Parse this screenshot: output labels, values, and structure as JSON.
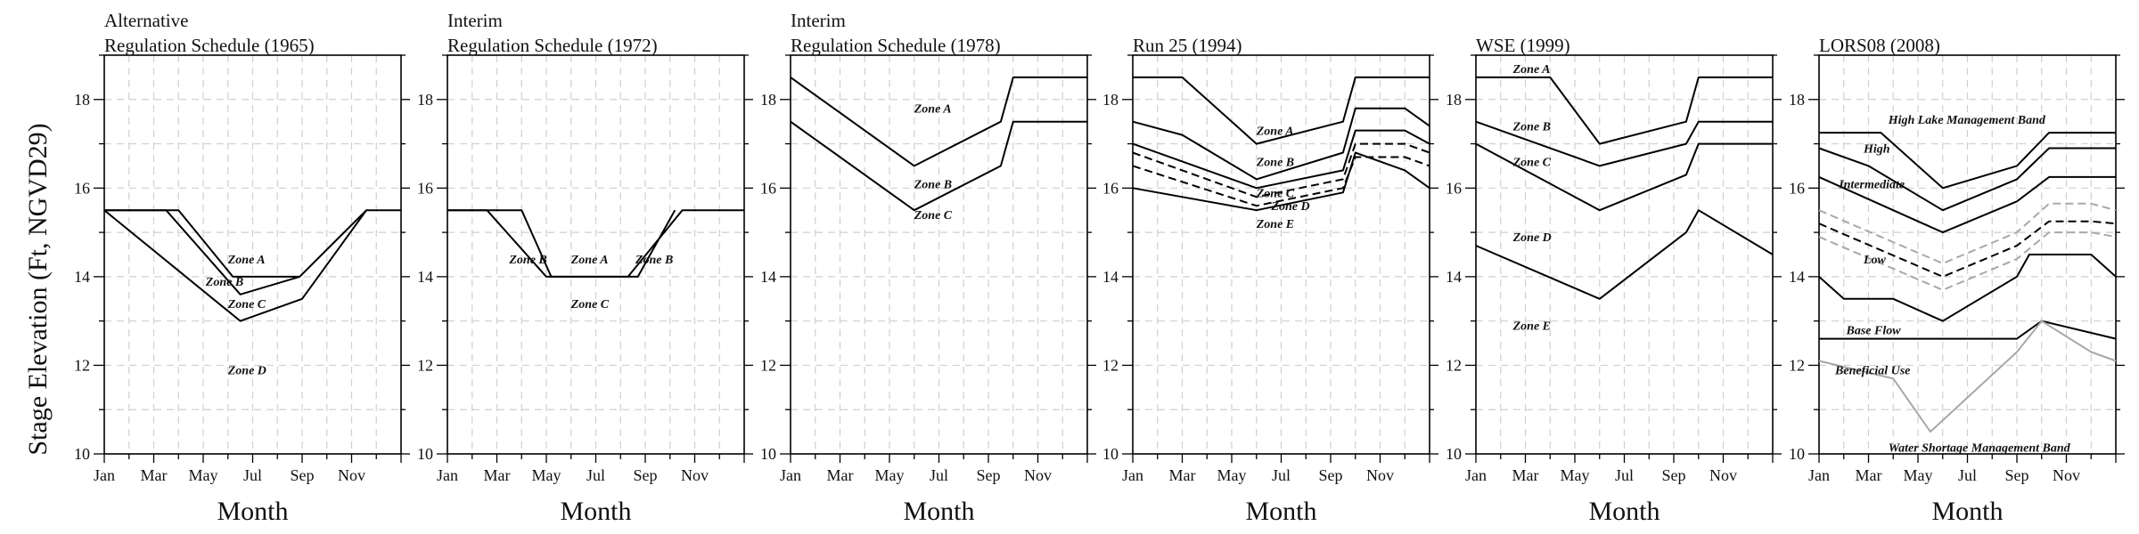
{
  "figure": {
    "ylabel": "Stage Elevation (Ft, NGVD29)",
    "colors": {
      "line": "#000000",
      "grey_line": "#a8a8a8",
      "grid": "#cfcfcf"
    }
  },
  "chart_data": [
    {
      "type": "line",
      "title_lines": [
        "Alternative",
        "Regulation Schedule (1965)"
      ],
      "xlabel": "Month",
      "x_ticks": [
        "Jan",
        "Mar",
        "May",
        "Jul",
        "Sep",
        "Nov"
      ],
      "xlim": [
        0,
        12
      ],
      "ylim": [
        10,
        19
      ],
      "y_ticks": [
        10,
        12,
        14,
        16,
        18
      ],
      "series": [
        {
          "style": "solid",
          "x": [
            0,
            3,
            5.2,
            7.9,
            10.6,
            12
          ],
          "y": [
            15.5,
            15.5,
            14,
            14,
            15.5,
            15.5
          ]
        },
        {
          "style": "solid",
          "x": [
            0,
            2.5,
            5.5,
            7.9
          ],
          "y": [
            15.5,
            15.5,
            13.6,
            14
          ]
        },
        {
          "style": "solid",
          "x": [
            0,
            5.5,
            8,
            10.6
          ],
          "y": [
            15.5,
            13,
            13.5,
            15.5
          ]
        }
      ],
      "labels": [
        {
          "text": "Zone A",
          "x": 5,
          "y": 14.4
        },
        {
          "text": "Zone B",
          "x": 4.1,
          "y": 13.9
        },
        {
          "text": "Zone C",
          "x": 5,
          "y": 13.4
        },
        {
          "text": "Zone D",
          "x": 5,
          "y": 11.9
        }
      ]
    },
    {
      "type": "line",
      "title_lines": [
        "Interim",
        "Regulation Schedule (1972)"
      ],
      "xlabel": "Month",
      "x_ticks": [
        "Jan",
        "Mar",
        "May",
        "Jul",
        "Sep",
        "Nov"
      ],
      "xlim": [
        0,
        12
      ],
      "ylim": [
        10,
        19
      ],
      "y_ticks": [
        10,
        12,
        14,
        16,
        18
      ],
      "series": [
        {
          "style": "solid",
          "x": [
            0,
            3,
            4.2,
            7.3,
            9.5,
            12
          ],
          "y": [
            15.5,
            15.5,
            14,
            14,
            15.5,
            15.5
          ]
        },
        {
          "style": "solid",
          "x": [
            0,
            1.6,
            4,
            7.7,
            9.2
          ],
          "y": [
            15.5,
            15.5,
            14,
            14,
            15.5
          ]
        }
      ],
      "labels": [
        {
          "text": "Zone B",
          "x": 2.5,
          "y": 14.4
        },
        {
          "text": "Zone A",
          "x": 5,
          "y": 14.4
        },
        {
          "text": "Zone B",
          "x": 7.6,
          "y": 14.4
        },
        {
          "text": "Zone C",
          "x": 5,
          "y": 13.4
        }
      ]
    },
    {
      "type": "line",
      "title_lines": [
        "Interim",
        "Regulation Schedule (1978)"
      ],
      "xlabel": "Month",
      "x_ticks": [
        "Jan",
        "Mar",
        "May",
        "Jul",
        "Sep",
        "Nov"
      ],
      "xlim": [
        0,
        12
      ],
      "ylim": [
        10,
        19
      ],
      "y_ticks": [
        10,
        12,
        14,
        16,
        18
      ],
      "series": [
        {
          "style": "solid",
          "x": [
            0,
            5,
            8.5,
            9,
            12
          ],
          "y": [
            18.5,
            16.5,
            17.5,
            18.5,
            18.5
          ]
        },
        {
          "style": "solid",
          "x": [
            0,
            5,
            8.5,
            9,
            12
          ],
          "y": [
            17.5,
            15.5,
            16.5,
            17.5,
            17.5
          ]
        }
      ],
      "labels": [
        {
          "text": "Zone A",
          "x": 5,
          "y": 17.8
        },
        {
          "text": "Zone B",
          "x": 5,
          "y": 16.1
        },
        {
          "text": "Zone C",
          "x": 5,
          "y": 15.4
        }
      ]
    },
    {
      "type": "line",
      "title_lines": [
        "Run 25 (1994)"
      ],
      "xlabel": "Month",
      "x_ticks": [
        "Jan",
        "Mar",
        "May",
        "Jul",
        "Sep",
        "Nov"
      ],
      "xlim": [
        0,
        12
      ],
      "ylim": [
        10,
        19
      ],
      "y_ticks": [
        10,
        12,
        14,
        16,
        18
      ],
      "series": [
        {
          "style": "solid",
          "x": [
            0,
            2,
            5,
            8.5,
            9,
            12
          ],
          "y": [
            18.5,
            18.5,
            17,
            17.5,
            18.5,
            18.5
          ]
        },
        {
          "style": "solid",
          "x": [
            0,
            2,
            5,
            8.5,
            9,
            11,
            12
          ],
          "y": [
            17.5,
            17.2,
            16.2,
            16.8,
            17.8,
            17.8,
            17.4
          ]
        },
        {
          "style": "solid",
          "x": [
            0,
            5,
            8.5,
            9,
            11,
            12
          ],
          "y": [
            17,
            16,
            16.4,
            17.3,
            17.3,
            17
          ]
        },
        {
          "style": "dashed",
          "x": [
            0,
            5,
            8.5,
            9,
            11,
            12
          ],
          "y": [
            16.8,
            15.8,
            16.2,
            17,
            17,
            16.8
          ]
        },
        {
          "style": "dashed",
          "x": [
            0,
            5,
            8.5,
            9,
            11,
            12
          ],
          "y": [
            16.5,
            15.6,
            16,
            16.7,
            16.7,
            16.5
          ]
        },
        {
          "style": "solid",
          "x": [
            0,
            5,
            8.5,
            9,
            11,
            12
          ],
          "y": [
            16,
            15.5,
            15.9,
            16.8,
            16.4,
            16
          ]
        }
      ],
      "labels": [
        {
          "text": "Zone A",
          "x": 5,
          "y": 17.3
        },
        {
          "text": "Zone B",
          "x": 5,
          "y": 16.6
        },
        {
          "text": "Zone C",
          "x": 5,
          "y": 15.9
        },
        {
          "text": "Zone D",
          "x": 5.6,
          "y": 15.6
        },
        {
          "text": "Zone E",
          "x": 5,
          "y": 15.2
        }
      ]
    },
    {
      "type": "line",
      "title_lines": [
        "WSE (1999)"
      ],
      "xlabel": "Month",
      "x_ticks": [
        "Jan",
        "Mar",
        "May",
        "Jul",
        "Sep",
        "Nov"
      ],
      "xlim": [
        0,
        12
      ],
      "ylim": [
        10,
        19
      ],
      "y_ticks": [
        10,
        12,
        14,
        16,
        18
      ],
      "series": [
        {
          "style": "solid",
          "x": [
            0,
            3,
            5,
            8.5,
            9,
            12
          ],
          "y": [
            18.5,
            18.5,
            17,
            17.5,
            18.5,
            18.5
          ]
        },
        {
          "style": "solid",
          "x": [
            0,
            5,
            8.5,
            9,
            12
          ],
          "y": [
            17.5,
            16.5,
            17,
            17.5,
            17.5
          ]
        },
        {
          "style": "solid",
          "x": [
            0,
            5,
            8.5,
            9,
            12
          ],
          "y": [
            17,
            15.5,
            16.3,
            17,
            17
          ]
        },
        {
          "style": "solid",
          "x": [
            0,
            5,
            8.5,
            9,
            12
          ],
          "y": [
            14.7,
            13.5,
            15,
            15.5,
            14.5
          ]
        }
      ],
      "labels": [
        {
          "text": "Zone A",
          "x": 1.5,
          "y": 18.7
        },
        {
          "text": "Zone B",
          "x": 1.5,
          "y": 17.4
        },
        {
          "text": "Zone C",
          "x": 1.5,
          "y": 16.6
        },
        {
          "text": "Zone D",
          "x": 1.5,
          "y": 14.9
        },
        {
          "text": "Zone E",
          "x": 1.5,
          "y": 12.9
        }
      ]
    },
    {
      "type": "line",
      "title_lines": [
        "LORS08 (2008)"
      ],
      "xlabel": "Month",
      "x_ticks": [
        "Jan",
        "Mar",
        "May",
        "Jul",
        "Sep",
        "Nov"
      ],
      "xlim": [
        0,
        12
      ],
      "ylim": [
        10,
        19
      ],
      "y_ticks": [
        10,
        12,
        14,
        16,
        18
      ],
      "series": [
        {
          "style": "solid",
          "x": [
            0,
            2.5,
            5,
            8,
            9.3,
            11,
            12
          ],
          "y": [
            17.25,
            17.25,
            16,
            16.5,
            17.25,
            17.25,
            17.25
          ]
        },
        {
          "style": "solid",
          "x": [
            0,
            2,
            5,
            8,
            9.3,
            11,
            12
          ],
          "y": [
            16.9,
            16.5,
            15.5,
            16.2,
            16.9,
            16.9,
            16.9
          ]
        },
        {
          "style": "solid",
          "x": [
            0,
            5,
            8,
            9.3,
            11,
            12
          ],
          "y": [
            16.25,
            15,
            15.7,
            16.25,
            16.25,
            16.25
          ]
        },
        {
          "style": "dashed-grey",
          "x": [
            0,
            5,
            8,
            9.3,
            11,
            12
          ],
          "y": [
            15.5,
            14.3,
            15,
            15.65,
            15.65,
            15.5
          ]
        },
        {
          "style": "dashed",
          "x": [
            0,
            5,
            8,
            9.3,
            11,
            12
          ],
          "y": [
            15.2,
            14,
            14.7,
            15.25,
            15.25,
            15.2
          ]
        },
        {
          "style": "dashed-grey",
          "x": [
            0,
            5,
            8,
            9.3,
            11,
            12
          ],
          "y": [
            14.9,
            13.7,
            14.4,
            15,
            15,
            14.9
          ]
        },
        {
          "style": "solid",
          "x": [
            0,
            1,
            3,
            5,
            8,
            8.5,
            11,
            12
          ],
          "y": [
            14,
            13.5,
            13.5,
            13,
            14,
            14.5,
            14.5,
            14
          ]
        },
        {
          "style": "solid",
          "x": [
            0,
            8,
            9,
            12
          ],
          "y": [
            12.6,
            12.6,
            13,
            12.6
          ]
        },
        {
          "style": "grey",
          "x": [
            0,
            3,
            4.5,
            8,
            9,
            11,
            12
          ],
          "y": [
            12.1,
            11.7,
            10.5,
            12.3,
            13,
            12.3,
            12.1
          ]
        }
      ],
      "labels": [
        {
          "text": "High Lake Management Band",
          "x": 2.8,
          "y": 17.55
        },
        {
          "text": "High",
          "x": 1.8,
          "y": 16.9
        },
        {
          "text": "Intermediate",
          "x": 0.8,
          "y": 16.1
        },
        {
          "text": "Low",
          "x": 1.8,
          "y": 14.4
        },
        {
          "text": "Base Flow",
          "x": 1.1,
          "y": 12.8
        },
        {
          "text": "Beneficial Use",
          "x": 0.65,
          "y": 11.9
        },
        {
          "text": "Water Shortage Management Band",
          "x": 2.8,
          "y": 10.15
        }
      ]
    }
  ]
}
